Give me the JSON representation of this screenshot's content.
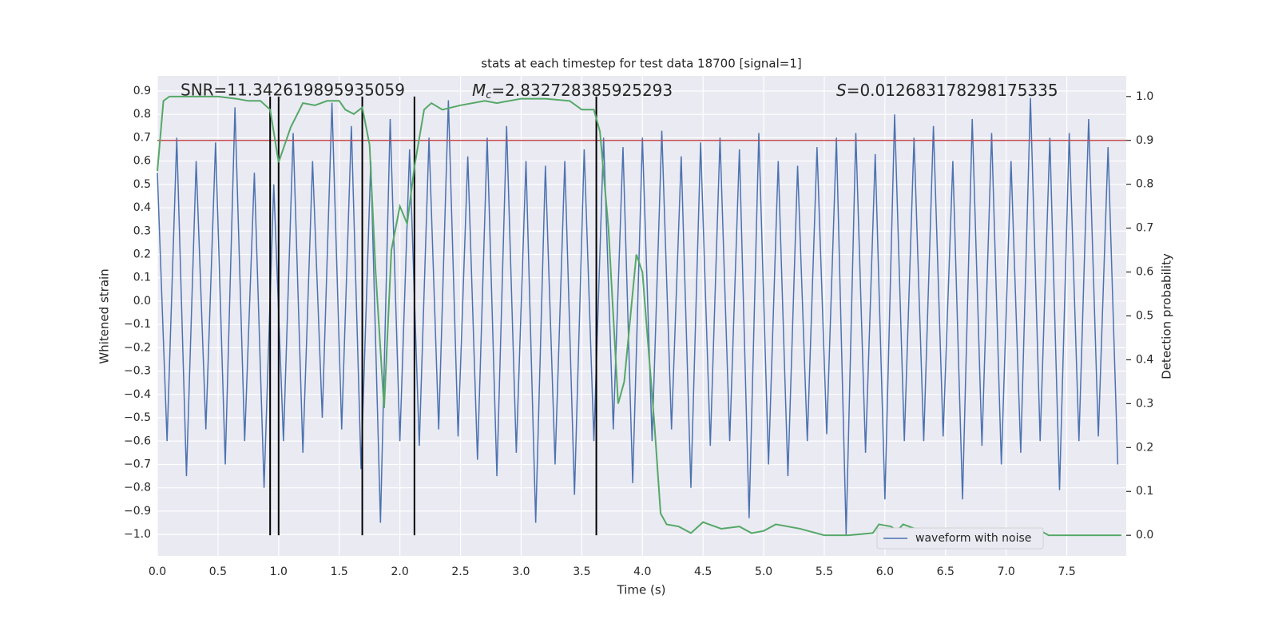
{
  "chart_data": {
    "type": "line",
    "title": "stats at each timestep for test data 18700 [signal=1]",
    "xlabel": "Time (s)",
    "ylabel": "Whitened strain",
    "y2label": "Detection probability",
    "annotations": [
      {
        "text": "SNR=11.342619895935059"
      },
      {
        "symbol": "M",
        "subscript": "c",
        "text": "=2.832728385925293"
      },
      {
        "symbol": "S",
        "text": "=0.012683178298175335"
      }
    ],
    "xlim": [
      0,
      7.99
    ],
    "ylim": [
      -1.092,
      0.965
    ],
    "y2lim": [
      -0.047,
      1.047
    ],
    "xticks": [
      {
        "value": 0,
        "label": "0.0"
      },
      {
        "value": 0.5,
        "label": "0.5"
      },
      {
        "value": 1,
        "label": "1.0"
      },
      {
        "value": 1.5,
        "label": "1.5"
      },
      {
        "value": 2,
        "label": "2.0"
      },
      {
        "value": 2.5,
        "label": "2.5"
      },
      {
        "value": 3,
        "label": "3.0"
      },
      {
        "value": 3.5,
        "label": "3.5"
      },
      {
        "value": 4,
        "label": "4.0"
      },
      {
        "value": 4.5,
        "label": "4.5"
      },
      {
        "value": 5,
        "label": "5.0"
      },
      {
        "value": 5.5,
        "label": "5.5"
      },
      {
        "value": 6,
        "label": "6.0"
      },
      {
        "value": 6.5,
        "label": "6.5"
      },
      {
        "value": 7,
        "label": "7.0"
      },
      {
        "value": 7.5,
        "label": "7.5"
      }
    ],
    "yticks": [
      {
        "value": -1,
        "label": "−1.0"
      },
      {
        "value": -0.9,
        "label": "−0.9"
      },
      {
        "value": -0.8,
        "label": "−0.8"
      },
      {
        "value": -0.7,
        "label": "−0.7"
      },
      {
        "value": -0.6,
        "label": "−0.6"
      },
      {
        "value": -0.5,
        "label": "−0.5"
      },
      {
        "value": -0.4,
        "label": "−0.4"
      },
      {
        "value": -0.3,
        "label": "−0.3"
      },
      {
        "value": -0.2,
        "label": "−0.2"
      },
      {
        "value": -0.1,
        "label": "−0.1"
      },
      {
        "value": 0,
        "label": "0.0"
      },
      {
        "value": 0.1,
        "label": "0.1"
      },
      {
        "value": 0.2,
        "label": "0.2"
      },
      {
        "value": 0.3,
        "label": "0.3"
      },
      {
        "value": 0.4,
        "label": "0.4"
      },
      {
        "value": 0.5,
        "label": "0.5"
      },
      {
        "value": 0.6,
        "label": "0.6"
      },
      {
        "value": 0.7,
        "label": "0.7"
      },
      {
        "value": 0.8,
        "label": "0.8"
      },
      {
        "value": 0.9,
        "label": "0.9"
      }
    ],
    "y2ticks": [
      {
        "value": 0,
        "label": "0.0"
      },
      {
        "value": 0.1,
        "label": "0.1"
      },
      {
        "value": 0.2,
        "label": "0.2"
      },
      {
        "value": 0.3,
        "label": "0.3"
      },
      {
        "value": 0.4,
        "label": "0.4"
      },
      {
        "value": 0.5,
        "label": "0.5"
      },
      {
        "value": 0.6,
        "label": "0.6"
      },
      {
        "value": 0.7,
        "label": "0.7"
      },
      {
        "value": 0.8,
        "label": "0.8"
      },
      {
        "value": 0.9,
        "label": "0.9"
      },
      {
        "value": 1,
        "label": "1.0"
      }
    ],
    "grid": true,
    "legend": "lower right",
    "series": [
      {
        "name": "waveform with noise",
        "color": "#4c72b0",
        "x": [
          0,
          0.08,
          0.16,
          0.24,
          0.32,
          0.4,
          0.48,
          0.56,
          0.64,
          0.72,
          0.8,
          0.88,
          0.96,
          1.04,
          1.12,
          1.2,
          1.28,
          1.36,
          1.44,
          1.52,
          1.6,
          1.68,
          1.76,
          1.84,
          1.92,
          2,
          2.08,
          2.16,
          2.24,
          2.32,
          2.4,
          2.48,
          2.56,
          2.64,
          2.72,
          2.8,
          2.88,
          2.96,
          3.04,
          3.12,
          3.2,
          3.28,
          3.36,
          3.44,
          3.52,
          3.6,
          3.68,
          3.76,
          3.84,
          3.92,
          4,
          4.08,
          4.16,
          4.24,
          4.32,
          4.4,
          4.48,
          4.56,
          4.64,
          4.72,
          4.8,
          4.88,
          4.96,
          5.04,
          5.12,
          5.2,
          5.28,
          5.36,
          5.44,
          5.52,
          5.6,
          5.68,
          5.76,
          5.84,
          5.92,
          6,
          6.08,
          6.16,
          6.24,
          6.32,
          6.4,
          6.48,
          6.56,
          6.64,
          6.72,
          6.8,
          6.88,
          6.96,
          7.04,
          7.12,
          7.2,
          7.28,
          7.36,
          7.44,
          7.52,
          7.6,
          7.68,
          7.76,
          7.84,
          7.92
        ],
        "values": [
          0.55,
          -0.6,
          0.7,
          -0.75,
          0.6,
          -0.55,
          0.68,
          -0.7,
          0.83,
          -0.6,
          0.55,
          -0.8,
          0.5,
          -0.6,
          0.72,
          -0.65,
          0.6,
          -0.5,
          0.85,
          -0.55,
          0.75,
          -0.72,
          0.6,
          -0.95,
          0.78,
          -0.6,
          0.65,
          -0.62,
          0.7,
          -0.55,
          0.86,
          -0.58,
          0.62,
          -0.68,
          0.7,
          -0.75,
          0.75,
          -0.65,
          0.6,
          -0.95,
          0.58,
          -0.7,
          0.6,
          -0.83,
          0.65,
          -0.6,
          0.7,
          -0.55,
          0.66,
          -0.78,
          0.7,
          -0.6,
          0.73,
          -0.55,
          0.62,
          -0.8,
          0.68,
          -0.62,
          0.7,
          -0.6,
          0.65,
          -0.93,
          0.72,
          -0.7,
          0.6,
          -0.75,
          0.58,
          -0.6,
          0.66,
          -0.57,
          0.7,
          -1.0,
          0.72,
          -0.65,
          0.63,
          -0.85,
          0.8,
          -0.6,
          0.7,
          -0.6,
          0.75,
          -0.58,
          0.6,
          -0.85,
          0.78,
          -0.62,
          0.72,
          -0.7,
          0.6,
          -0.65,
          0.87,
          -0.6,
          0.7,
          -0.81,
          0.72,
          -0.6,
          0.78,
          -0.58,
          0.66,
          -0.7
        ]
      },
      {
        "color": "#55a868",
        "axis": "y2",
        "x": [
          0,
          0.05,
          0.1,
          0.3,
          0.5,
          0.65,
          0.75,
          0.85,
          0.93,
          1,
          1.1,
          1.2,
          1.3,
          1.4,
          1.5,
          1.55,
          1.62,
          1.69,
          1.75,
          1.8,
          1.87,
          1.93,
          2,
          2.06,
          2.12,
          2.2,
          2.26,
          2.35,
          2.5,
          2.7,
          2.8,
          3,
          3.2,
          3.4,
          3.5,
          3.6,
          3.65,
          3.72,
          3.8,
          3.85,
          3.95,
          4,
          4.1,
          4.15,
          4.2,
          4.3,
          4.4,
          4.5,
          4.65,
          4.8,
          4.9,
          5,
          5.1,
          5.3,
          5.5,
          5.7,
          5.9,
          5.95,
          6.05,
          6.1,
          6.15,
          6.25,
          6.35,
          6.5,
          7,
          7.15,
          7.25,
          7.35,
          7.6,
          7.95
        ],
        "values": [
          0.83,
          0.99,
          1.0,
          1.0,
          1.0,
          0.995,
          0.99,
          0.99,
          0.97,
          0.85,
          0.93,
          0.985,
          0.98,
          0.99,
          0.99,
          0.97,
          0.96,
          0.975,
          0.89,
          0.6,
          0.29,
          0.65,
          0.75,
          0.71,
          0.84,
          0.97,
          0.985,
          0.97,
          0.98,
          0.99,
          0.985,
          0.995,
          0.995,
          0.99,
          0.97,
          0.97,
          0.92,
          0.7,
          0.3,
          0.35,
          0.64,
          0.6,
          0.25,
          0.05,
          0.025,
          0.02,
          0.005,
          0.03,
          0.015,
          0.02,
          0.005,
          0.01,
          0.025,
          0.015,
          0.0,
          0.0,
          0.005,
          0.025,
          0.02,
          0.01,
          0.025,
          0.015,
          0.005,
          0.0,
          0.0,
          0.005,
          0.015,
          0.0,
          0.0,
          0.0
        ]
      }
    ],
    "hline": {
      "value": 0.9,
      "axis": "y2",
      "color": "#c44e52"
    },
    "vlines": {
      "x": [
        0.93,
        1.0,
        1.69,
        2.12,
        3.62
      ],
      "color": "#000000"
    }
  }
}
